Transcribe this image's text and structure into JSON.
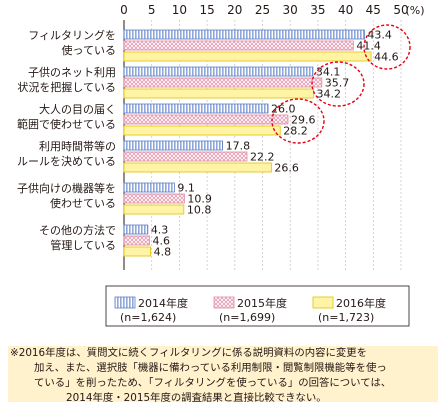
{
  "chart_data": {
    "type": "bar",
    "orientation": "horizontal",
    "categories": [
      [
        "フィルタリングを",
        "使っている"
      ],
      [
        "子供のネット利用",
        "状況を把握している"
      ],
      [
        "大人の目の届く",
        "範囲で使わせている"
      ],
      [
        "利用時間帯等の",
        "ルールを決めている"
      ],
      [
        "子供向けの機器等を",
        "使わせている"
      ],
      [
        "その他の方法で",
        "管理している"
      ]
    ],
    "series": [
      {
        "name": "2014年度",
        "sub": "(n=1,624)",
        "values": [
          43.4,
          34.1,
          26.0,
          17.8,
          9.1,
          4.3
        ],
        "color": "#8fa8db",
        "pattern": "vertical-stripes"
      },
      {
        "name": "2015年度",
        "sub": "(n=1,699)",
        "values": [
          41.4,
          35.7,
          29.6,
          22.2,
          10.9,
          4.6
        ],
        "color": "#f6c9d3",
        "pattern": "crosshatch"
      },
      {
        "name": "2016年度",
        "sub": "(n=1,723)",
        "values": [
          44.6,
          34.2,
          28.2,
          26.6,
          10.8,
          4.8
        ],
        "color": "#fff3a6",
        "pattern": "solid"
      }
    ],
    "xlim": [
      0,
      50
    ],
    "xticks": [
      "0",
      "5",
      "10",
      "15",
      "20",
      "25",
      "30",
      "35",
      "40",
      "45",
      "50"
    ],
    "x_unit": "(%)",
    "highlight_color": "#e60012",
    "legend_position": "bottom"
  },
  "note": {
    "lines": [
      "※2016年度は、質問文に続くフィルタリングに係る説明資料の内容に変更を",
      "加え、また、選択肢「機器に備わっている利用制限・閲覧制限機能等を使っ",
      "ている」を削ったため、「フィルタリングを使っている」の回答については、",
      "2014年度・2015年度の調査結果と直接比較できない。"
    ]
  }
}
